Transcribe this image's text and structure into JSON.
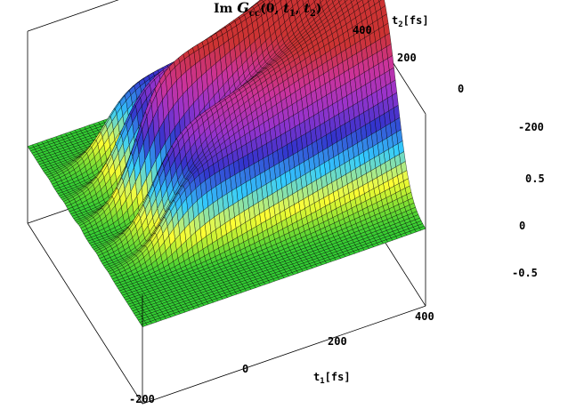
{
  "chart_data": {
    "type": "surface3d",
    "title": "Im G_cc(0, t1, t2)",
    "title_parts": {
      "prefix": "Im ",
      "symbol": "G",
      "subscript": "cc",
      "args_open": "(0, ",
      "t1": "t",
      "t1_sub": "1",
      "sep": ", ",
      "t2": "t",
      "t2_sub": "2",
      "close": ")"
    },
    "x_axis": {
      "label": "t",
      "label_sub": "1",
      "label_unit": "[fs]",
      "ticks": [
        "-200",
        "0",
        "200",
        "400"
      ],
      "tick_values": [
        -200,
        0,
        200,
        400
      ],
      "range": [
        -200,
        550
      ]
    },
    "y_axis": {
      "label": "t",
      "label_sub": "2",
      "label_unit": "[fs]",
      "ticks": [
        "400",
        "200",
        "0",
        "-200"
      ],
      "tick_values": [
        400,
        200,
        0,
        -200
      ],
      "range": [
        -300,
        450
      ]
    },
    "z_axis": {
      "ticks": [
        "0.5",
        "0",
        "-0.5"
      ],
      "tick_values": [
        0.5,
        0,
        -0.5
      ],
      "range": [
        -0.8,
        1.2
      ]
    },
    "ridges": [
      {
        "t1": -60,
        "amplitude": 0.75
      },
      {
        "t1": 40,
        "amplitude": 1.05
      },
      {
        "t1": 140,
        "amplitude": 1.45
      },
      {
        "t1": 250,
        "amplitude": 1.05
      },
      {
        "t1": 330,
        "amplitude": 0.75
      }
    ],
    "surface_colors": [
      "#33cc33",
      "#ffff33",
      "#33ccff",
      "#3333cc",
      "#9933cc",
      "#cc3399",
      "#cc3333"
    ]
  }
}
